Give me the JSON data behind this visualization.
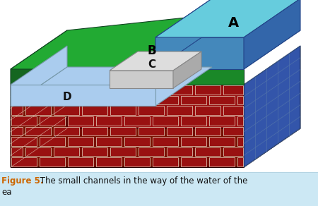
{
  "title": "Figure 5.",
  "caption": " The small channels in the way of the water of the",
  "caption2": "ea",
  "title_color": "#cc6600",
  "caption_color": "#111111",
  "bg_color": "#cce8f4",
  "fig_bg": "#ffffff",
  "label_A": "A",
  "label_B": "B",
  "label_C": "C",
  "label_D": "D",
  "water_top_color": "#66ccdd",
  "water_side_color": "#4488bb",
  "water_right_color": "#3366aa",
  "green_top_color": "#22aa33",
  "green_front_color": "#1a8828",
  "green_left_color": "#156620",
  "brick_front_color": "#991111",
  "brick_left_color": "#771100",
  "brick_top_color": "#cc3322",
  "brick_mortar": "#ddbbaa",
  "blue_side_color": "#3355aa",
  "channel_color": "#aaccee",
  "channel_dark": "#88aacc",
  "pipe_body": "#cccccc",
  "pipe_top": "#dddddd",
  "pipe_dark": "#aaaaaa"
}
